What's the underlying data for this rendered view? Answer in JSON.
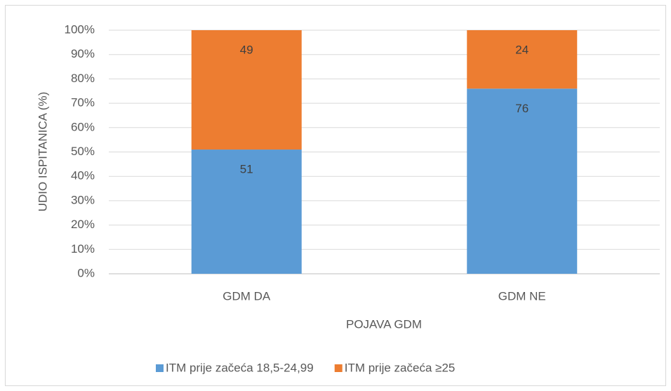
{
  "chart_data": {
    "type": "stacked_bar",
    "x_label": "POJAVA GDM",
    "y_label": "UDIO ISPITANICA (%)",
    "categories": [
      "GDM DA",
      "GDM NE"
    ],
    "series": [
      {
        "name": "ITM prije začeća 18,5-24,99",
        "color": "#5b9bd5",
        "values": [
          51,
          76
        ]
      },
      {
        "name": "ITM prije začeća ≥25",
        "color": "#ed7d31",
        "values": [
          49,
          24
        ]
      }
    ],
    "ylim": [
      0,
      100
    ],
    "yticks": [
      {
        "value": 0,
        "label": "0%"
      },
      {
        "value": 10,
        "label": "10%"
      },
      {
        "value": 20,
        "label": "20%"
      },
      {
        "value": 30,
        "label": "30%"
      },
      {
        "value": 40,
        "label": "40%"
      },
      {
        "value": 50,
        "label": "50%"
      },
      {
        "value": 60,
        "label": "60%"
      },
      {
        "value": 70,
        "label": "70%"
      },
      {
        "value": 80,
        "label": "80%"
      },
      {
        "value": 90,
        "label": "90%"
      },
      {
        "value": 100,
        "label": "100%"
      }
    ],
    "grid": true,
    "legend": "bottom"
  }
}
